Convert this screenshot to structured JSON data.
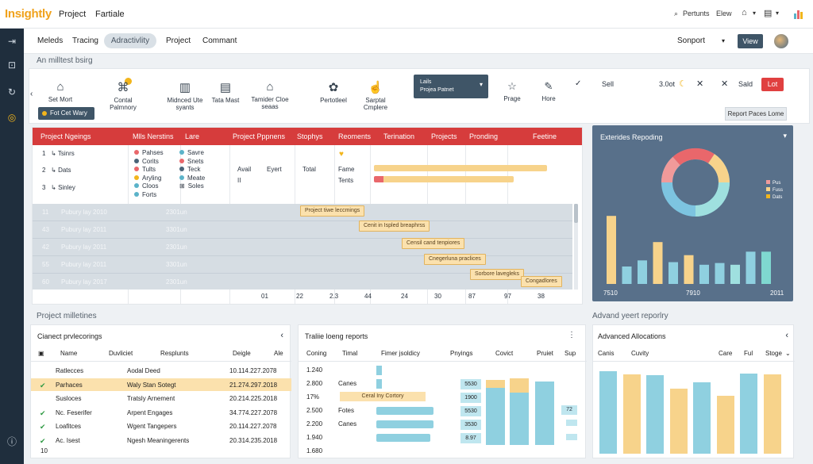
{
  "app": {
    "logo": "Insightly",
    "nav": [
      "Project",
      "Fartiale"
    ]
  },
  "top_right": {
    "search_label": "Pertunts",
    "view_label": "Elew"
  },
  "menubar": {
    "items": [
      "Meleds",
      "Tracing",
      "Adractivlity",
      "Project",
      "Commant"
    ],
    "support": "Sonport",
    "view_button": "View"
  },
  "subheader": "An milltest bsirg",
  "toolbar": {
    "items": [
      {
        "icon": "home-icon",
        "label": "Set Mort"
      },
      {
        "icon": "pin-icon",
        "label": "Contal Palmnory"
      },
      {
        "icon": "chart-icon",
        "label": "Midnced Ute syants"
      },
      {
        "icon": "document-icon",
        "label": "Tata Mast"
      },
      {
        "icon": "building-icon",
        "label": "Tamider Cloe seaas"
      },
      {
        "icon": "settings-icon",
        "label": "Pertotleel"
      },
      {
        "icon": "hand-icon",
        "label": "Sarptal Cmplere"
      }
    ],
    "feature_button": "Fot Cet Wary",
    "dropdown_line1": "Lails",
    "dropdown_line2": "Projea Patnet",
    "right_items": [
      {
        "label": "Prage"
      },
      {
        "label": "Hore"
      }
    ],
    "sell": "Sell",
    "sell_value": "3.0ot",
    "sald": "Sald",
    "red_button": "Lot",
    "report_button": "Report Paces Lome"
  },
  "gantt": {
    "headers": [
      "Project Ngeings",
      "Mlls Nerstins",
      "Lare",
      "Project Pppnens",
      "Stophys",
      "Reoments",
      "Terination",
      "Projects",
      "Pronding",
      "Feetine"
    ],
    "tasks": [
      {
        "num": "1",
        "label": "Tsinrs"
      },
      {
        "num": "2",
        "label": "Dats"
      },
      {
        "num": "3",
        "label": "Sinley"
      }
    ],
    "legend": [
      {
        "label": "Pahses",
        "color": "#e9676b"
      },
      {
        "label": "Corits",
        "color": "#4a6478"
      },
      {
        "label": "Tults",
        "color": "#e9676b"
      },
      {
        "label": "Aryling",
        "color": "#f2b51c"
      },
      {
        "label": "Cloos",
        "color": "#5bb3c9"
      },
      {
        "label": "Forts",
        "color": "#5bb3c9"
      }
    ],
    "legend2": [
      {
        "label": "Savre",
        "color": "#5bb3c9"
      },
      {
        "label": "Snets",
        "color": "#e9676b"
      },
      {
        "label": "Teck",
        "color": "#4a6478"
      },
      {
        "label": "Meate",
        "color": "#5bb3c9"
      },
      {
        "label": "Soles",
        "color": "#4a6478"
      }
    ],
    "mid": {
      "avail": "Avail",
      "ii": "II",
      "expert": "Eyert",
      "total": "Total",
      "fame": "Fame",
      "tents": "Tents"
    },
    "dark_rows": [
      {
        "num": "11",
        "name": "Pubury lay 2010",
        "val": "2301un"
      },
      {
        "num": "43",
        "name": "Pubury lay 2011",
        "val": "3301un"
      },
      {
        "num": "42",
        "name": "Pubury lay 2011",
        "val": "2301un"
      },
      {
        "num": "55",
        "name": "Pubury lay 2011",
        "val": "3301un"
      },
      {
        "num": "60",
        "name": "Pubury lay 2017",
        "val": "2301un"
      }
    ],
    "tags": [
      "Project tiwe leccmings",
      "Cenit in Ispled breaphrss",
      "Censil cand tenpiores",
      "Cnegerluna praclices",
      "Sorbore lavegleks",
      "Congadlores"
    ],
    "axis": [
      "01",
      "22",
      "2.3",
      "44",
      "24",
      "30",
      "87",
      "97",
      "38"
    ],
    "bar_progress": [
      0.88,
      0.71
    ]
  },
  "chart_panel": {
    "title": "Exterides Repoding",
    "legend": [
      "Pus",
      "Fuss",
      "Dats"
    ],
    "bars": [
      0.78,
      0.2,
      0.27,
      0.48,
      0.25,
      0.33,
      0.22,
      0.24,
      0.22,
      0.37,
      0.37
    ],
    "x_labels": [
      "7510",
      "7910",
      "2011"
    ]
  },
  "bottom": {
    "section_title": "Project milletines",
    "advanced_title": "Advand yeert reporlry",
    "card1": {
      "title": "Cianect prvlecorings",
      "headers": [
        "Name",
        "Duvliciet",
        "Resplunts",
        "Deigle",
        "Ale"
      ],
      "rows": [
        {
          "check": "",
          "name": "Ratlecces",
          "b": "Aodal Deed",
          "c": "10.114.227.2078"
        },
        {
          "check": "✔",
          "name": "Parhaces",
          "b": "Waly Stan Sotegt",
          "c": "21.274.297.2018"
        },
        {
          "check": "",
          "name": "Susloces",
          "b": "Tratsly Arnement",
          "c": "20.214.225.2018"
        },
        {
          "check": "✔",
          "name": "Nc. Feserifer",
          "b": "Arpent Engages",
          "c": "34.774.227.2078"
        },
        {
          "check": "✔",
          "name": "Loafitces",
          "b": "Wgent Tangepers",
          "c": "20.114.227.2078"
        },
        {
          "check": "✔",
          "name": "Ac. Isest",
          "b": "Ngesh Meaningerents",
          "c": "20.314.235.2018"
        }
      ],
      "footer": "10"
    },
    "card2": {
      "title": "Traliie loeng reports",
      "headers": [
        "Coning",
        "Timal",
        "Fimer jsoldicy",
        "Pnyings",
        "Covict",
        "Pruiet",
        "Sup"
      ],
      "rows": [
        {
          "a": "1.240",
          "b": "",
          "badge": ""
        },
        {
          "a": "2.800",
          "b": "Canes",
          "badge": "5530"
        },
        {
          "a": "17%",
          "b": "",
          "badge": "1900"
        },
        {
          "a": "2.500",
          "b": "Fotes",
          "badge": "5530"
        },
        {
          "a": "2.200",
          "b": "Canes",
          "badge": "3530"
        },
        {
          "a": "1.940",
          "b": "",
          "badge": "8.97"
        },
        {
          "a": "1.680",
          "b": "",
          "badge": ""
        }
      ],
      "highlight": "Ceral Iny Cortory",
      "side_badge": "72",
      "stack_blue": [
        0.72,
        0.66,
        0.8
      ],
      "stack_yellow": [
        0.1,
        0.18,
        0
      ]
    },
    "card3": {
      "title": "Advanced Allocations",
      "headers": [
        "Canis",
        "Cuvity",
        "Care",
        "Ful",
        "Stoge"
      ],
      "bars": [
        0.93,
        0.89,
        0.88,
        0.73,
        0.8,
        0.65,
        0.9,
        0.89
      ]
    }
  },
  "colors": {
    "accent": "#f2b51c",
    "header_red": "#d63c3c",
    "navy": "#3f5567",
    "panel": "#58708a",
    "yellow": "#f7d38b",
    "blue": "#8fd0e0",
    "teal": "#7fd8d0"
  }
}
